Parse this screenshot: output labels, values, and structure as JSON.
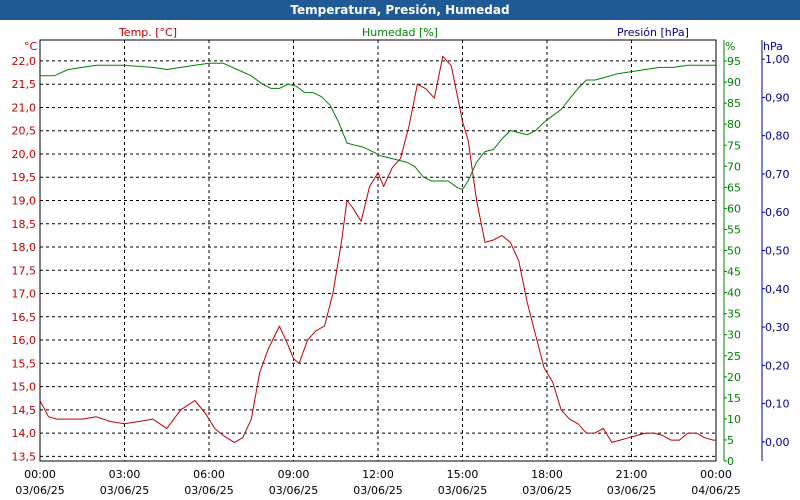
{
  "window": {
    "title": "Temperatura, Presión, Humedad"
  },
  "colors": {
    "temperature": "#c00000",
    "humidity": "#008000",
    "pressure": "#000090",
    "titlebar": "#1f5a96",
    "grid": "#000000"
  },
  "chart_data": {
    "type": "line",
    "title": "Temperatura, Presión, Humedad",
    "grid": true,
    "legend": [
      {
        "label": "Temp. [°C]",
        "axis": "temp"
      },
      {
        "label": "Humedad [%]",
        "axis": "hum"
      },
      {
        "label": "Presión [hPa]",
        "axis": "press"
      }
    ],
    "x_axis": {
      "range_hours": [
        0,
        24
      ],
      "ticks": [
        {
          "time": "00:00",
          "date": "03/06/25"
        },
        {
          "time": "03:00",
          "date": "03/06/25"
        },
        {
          "time": "06:00",
          "date": "03/06/25"
        },
        {
          "time": "09:00",
          "date": "03/06/25"
        },
        {
          "time": "12:00",
          "date": "03/06/25"
        },
        {
          "time": "15:00",
          "date": "03/06/25"
        },
        {
          "time": "18:00",
          "date": "03/06/25"
        },
        {
          "time": "21:00",
          "date": "03/06/25"
        },
        {
          "time": "00:00",
          "date": "04/06/25"
        }
      ]
    },
    "axes": {
      "temp": {
        "unit": "°C",
        "range": [
          13.4,
          22.45
        ],
        "ticks": [
          "13,5",
          "14,0",
          "14,5",
          "15,0",
          "15,5",
          "16,0",
          "16,5",
          "17,0",
          "17,5",
          "18,0",
          "18,5",
          "19,0",
          "19,5",
          "20,0",
          "20,5",
          "21,0",
          "21,5",
          "22,0"
        ]
      },
      "hum": {
        "unit": "%",
        "range": [
          0,
          100
        ],
        "ticks": [
          "0",
          "5",
          "10",
          "15",
          "20",
          "25",
          "30",
          "35",
          "40",
          "45",
          "50",
          "55",
          "60",
          "65",
          "70",
          "75",
          "80",
          "85",
          "90",
          "95"
        ]
      },
      "press": {
        "unit": "hPa",
        "range": [
          -0.05,
          1.05
        ],
        "ticks": [
          "0,00",
          "0,10",
          "0,20",
          "0,30",
          "0,40",
          "0,50",
          "0,60",
          "0,70",
          "0,80",
          "0,90",
          "1,00"
        ]
      }
    },
    "series": [
      {
        "name": "Temp. [°C]",
        "axis": "temp",
        "x": [
          0,
          0.3,
          0.6,
          1.0,
          1.5,
          2.0,
          2.5,
          3.0,
          3.5,
          4.0,
          4.5,
          5.0,
          5.5,
          5.9,
          6.2,
          6.5,
          6.9,
          7.2,
          7.5,
          7.8,
          8.1,
          8.5,
          8.8,
          9.0,
          9.2,
          9.5,
          9.8,
          10.1,
          10.4,
          10.7,
          10.9,
          11.1,
          11.4,
          11.7,
          12.0,
          12.2,
          12.5,
          12.8,
          13.1,
          13.4,
          13.7,
          14.0,
          14.3,
          14.6,
          14.8,
          15.0,
          15.2,
          15.5,
          15.8,
          16.1,
          16.4,
          16.7,
          17.0,
          17.3,
          17.6,
          17.9,
          18.2,
          18.5,
          18.8,
          19.1,
          19.4,
          19.7,
          20.0,
          20.3,
          20.6,
          20.9,
          21.2,
          21.5,
          21.8,
          22.1,
          22.4,
          22.7,
          23.0,
          23.3,
          23.6,
          23.9,
          24.0
        ],
        "y": [
          14.7,
          14.35,
          14.3,
          14.3,
          14.3,
          14.35,
          14.25,
          14.2,
          14.25,
          14.3,
          14.1,
          14.5,
          14.7,
          14.4,
          14.1,
          13.95,
          13.8,
          13.9,
          14.3,
          15.3,
          15.8,
          16.3,
          15.9,
          15.6,
          15.5,
          16.0,
          16.2,
          16.3,
          17.0,
          18.1,
          19.0,
          18.85,
          18.55,
          19.3,
          19.6,
          19.3,
          19.7,
          19.9,
          20.6,
          21.5,
          21.4,
          21.2,
          22.1,
          21.9,
          21.3,
          20.7,
          20.3,
          19.0,
          18.1,
          18.15,
          18.25,
          18.1,
          17.7,
          16.8,
          16.1,
          15.4,
          15.1,
          14.5,
          14.3,
          14.2,
          14.0,
          14.0,
          14.1,
          13.8,
          13.85,
          13.9,
          13.95,
          14.0,
          14.0,
          13.95,
          13.85,
          13.85,
          14.0,
          14.0,
          13.9,
          13.85,
          13.85
        ]
      },
      {
        "name": "Humedad [%]",
        "axis": "hum",
        "x": [
          0,
          0.5,
          1.0,
          1.5,
          2.0,
          3.0,
          4.0,
          4.5,
          5.0,
          5.5,
          6.0,
          6.5,
          7.0,
          7.5,
          7.9,
          8.2,
          8.5,
          8.8,
          9.1,
          9.4,
          9.7,
          10.0,
          10.3,
          10.6,
          10.9,
          11.2,
          11.5,
          11.8,
          12.1,
          12.4,
          12.7,
          13.0,
          13.3,
          13.6,
          13.9,
          14.2,
          14.5,
          14.8,
          15.0,
          15.2,
          15.5,
          15.8,
          16.1,
          16.4,
          16.7,
          17.0,
          17.3,
          17.6,
          17.9,
          18.2,
          18.5,
          18.8,
          19.1,
          19.4,
          19.7,
          20.0,
          20.5,
          21.0,
          21.5,
          22.0,
          22.5,
          23.0,
          23.5,
          24.0
        ],
        "y": [
          91.5,
          91.5,
          93,
          93.5,
          94,
          94,
          93.5,
          93,
          93.5,
          94,
          94.5,
          94.5,
          93,
          91.5,
          89.5,
          88.5,
          88.5,
          89.5,
          89.0,
          87.5,
          87.5,
          86.5,
          84.5,
          80.5,
          75.5,
          75.0,
          74.5,
          73.5,
          72.5,
          72.0,
          71.5,
          71.0,
          70.0,
          67.5,
          66.5,
          66.5,
          66.5,
          65.0,
          64.5,
          66.5,
          71.0,
          73.5,
          74.0,
          76.5,
          78.5,
          78.0,
          77.5,
          78.5,
          80.5,
          82.0,
          83.5,
          86.0,
          88.5,
          90.5,
          90.5,
          91.0,
          92.0,
          92.5,
          93.0,
          93.5,
          93.5,
          94.0,
          94.0,
          94.0
        ]
      },
      {
        "name": "Presión [hPa]",
        "axis": "press",
        "x": [],
        "y": []
      }
    ]
  }
}
